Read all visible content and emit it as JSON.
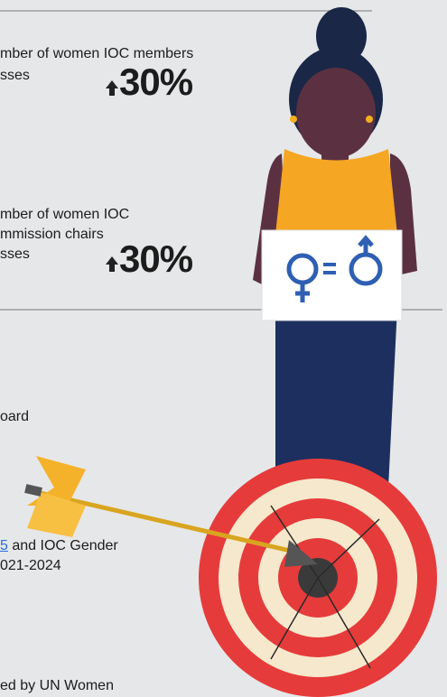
{
  "stats": [
    {
      "lines": [
        "mber of women IOC members",
        "sses"
      ],
      "value": "30%"
    },
    {
      "lines": [
        "mber of women IOC",
        "mmission chairs",
        "sses"
      ],
      "value": "30%"
    }
  ],
  "board_text": "oard",
  "source": {
    "link": "5",
    "text": " and IOC Gender",
    "line2": "021-2024"
  },
  "footer": "ed by UN Women"
}
